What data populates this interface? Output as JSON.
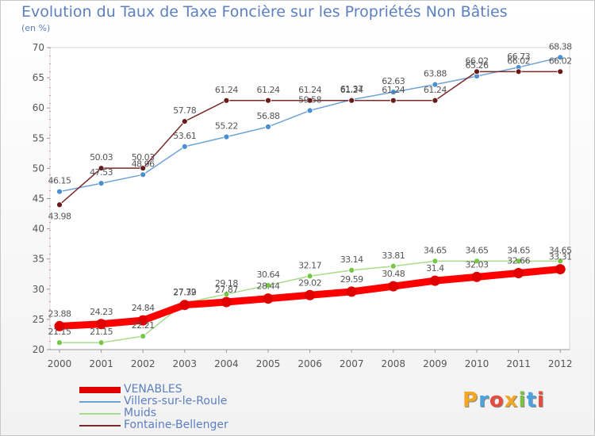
{
  "title": "Evolution du Taux de Taxe Foncière sur les Propriétés Non Bâties",
  "unit": "(en %)",
  "chart_data": {
    "type": "line",
    "x": [
      "2000",
      "2001",
      "2002",
      "2003",
      "2004",
      "2005",
      "2006",
      "2007",
      "2008",
      "2009",
      "2010",
      "2011",
      "2012"
    ],
    "ylim": [
      20,
      70
    ],
    "yticks": [
      20,
      25,
      30,
      35,
      40,
      45,
      50,
      55,
      60,
      65,
      70
    ],
    "grid": false,
    "legend_position": "bottom-left",
    "series": [
      {
        "name": "VENABLES",
        "color": "#ff0000",
        "width": "thick",
        "values": [
          23.88,
          24.23,
          24.84,
          27.39,
          27.87,
          28.44,
          29.02,
          29.59,
          30.48,
          31.4,
          32.03,
          32.66,
          33.31
        ],
        "labels": [
          "23.88",
          "24.23",
          "24.84",
          "27.39",
          "27.87",
          "28.44",
          "29.02",
          "29.59",
          "30.48",
          "31.4",
          "32.03",
          "32.66",
          "33.31"
        ]
      },
      {
        "name": "Villers-sur-le-Roule",
        "color": "#6fa3d6",
        "marker": "#4a8fd0",
        "values": [
          46.15,
          47.53,
          48.96,
          53.61,
          55.22,
          56.88,
          59.58,
          61.37,
          62.63,
          63.88,
          65.26,
          66.73,
          68.38
        ],
        "labels": [
          "46.15",
          "47.53",
          "48.96",
          "53.61",
          "55.22",
          "56.88",
          "59.58",
          "61.37",
          "62.63",
          "63.88",
          "65.26",
          "66.73",
          "68.38"
        ]
      },
      {
        "name": "Muids",
        "color": "#a6dc8a",
        "marker": "#74c845",
        "values": [
          21.15,
          21.15,
          22.21,
          27.72,
          29.18,
          30.64,
          32.17,
          33.14,
          33.81,
          34.65,
          34.65,
          34.65,
          34.65
        ],
        "labels": [
          "21.15",
          "21.15",
          "22.21",
          "27.72",
          "29.18",
          "30.64",
          "32.17",
          "33.14",
          "33.81",
          "34.65",
          "34.65",
          "34.65",
          "34.65"
        ]
      },
      {
        "name": "Fontaine-Bellenger",
        "color": "#7a2a2a",
        "marker": "#6a1a1a",
        "values": [
          43.98,
          50.03,
          50.03,
          57.78,
          61.24,
          61.24,
          61.24,
          61.24,
          61.24,
          61.24,
          66.02,
          66.02,
          66.02
        ],
        "labels": [
          "43.98",
          "50.03",
          "50.03",
          "57.78",
          "61.24",
          "61.24",
          "61.24",
          "61.24",
          "61.24",
          "61.24",
          "66.02",
          "66.02",
          "66.02"
        ]
      }
    ]
  },
  "logo": {
    "letters": [
      "P",
      "r",
      "o",
      "x",
      "i",
      "t",
      "i"
    ],
    "colors": [
      "#f5a623",
      "#4aa3df",
      "#e94b3c",
      "#f5a623",
      "#7cc242",
      "#4aa3df",
      "#e94b3c"
    ]
  }
}
